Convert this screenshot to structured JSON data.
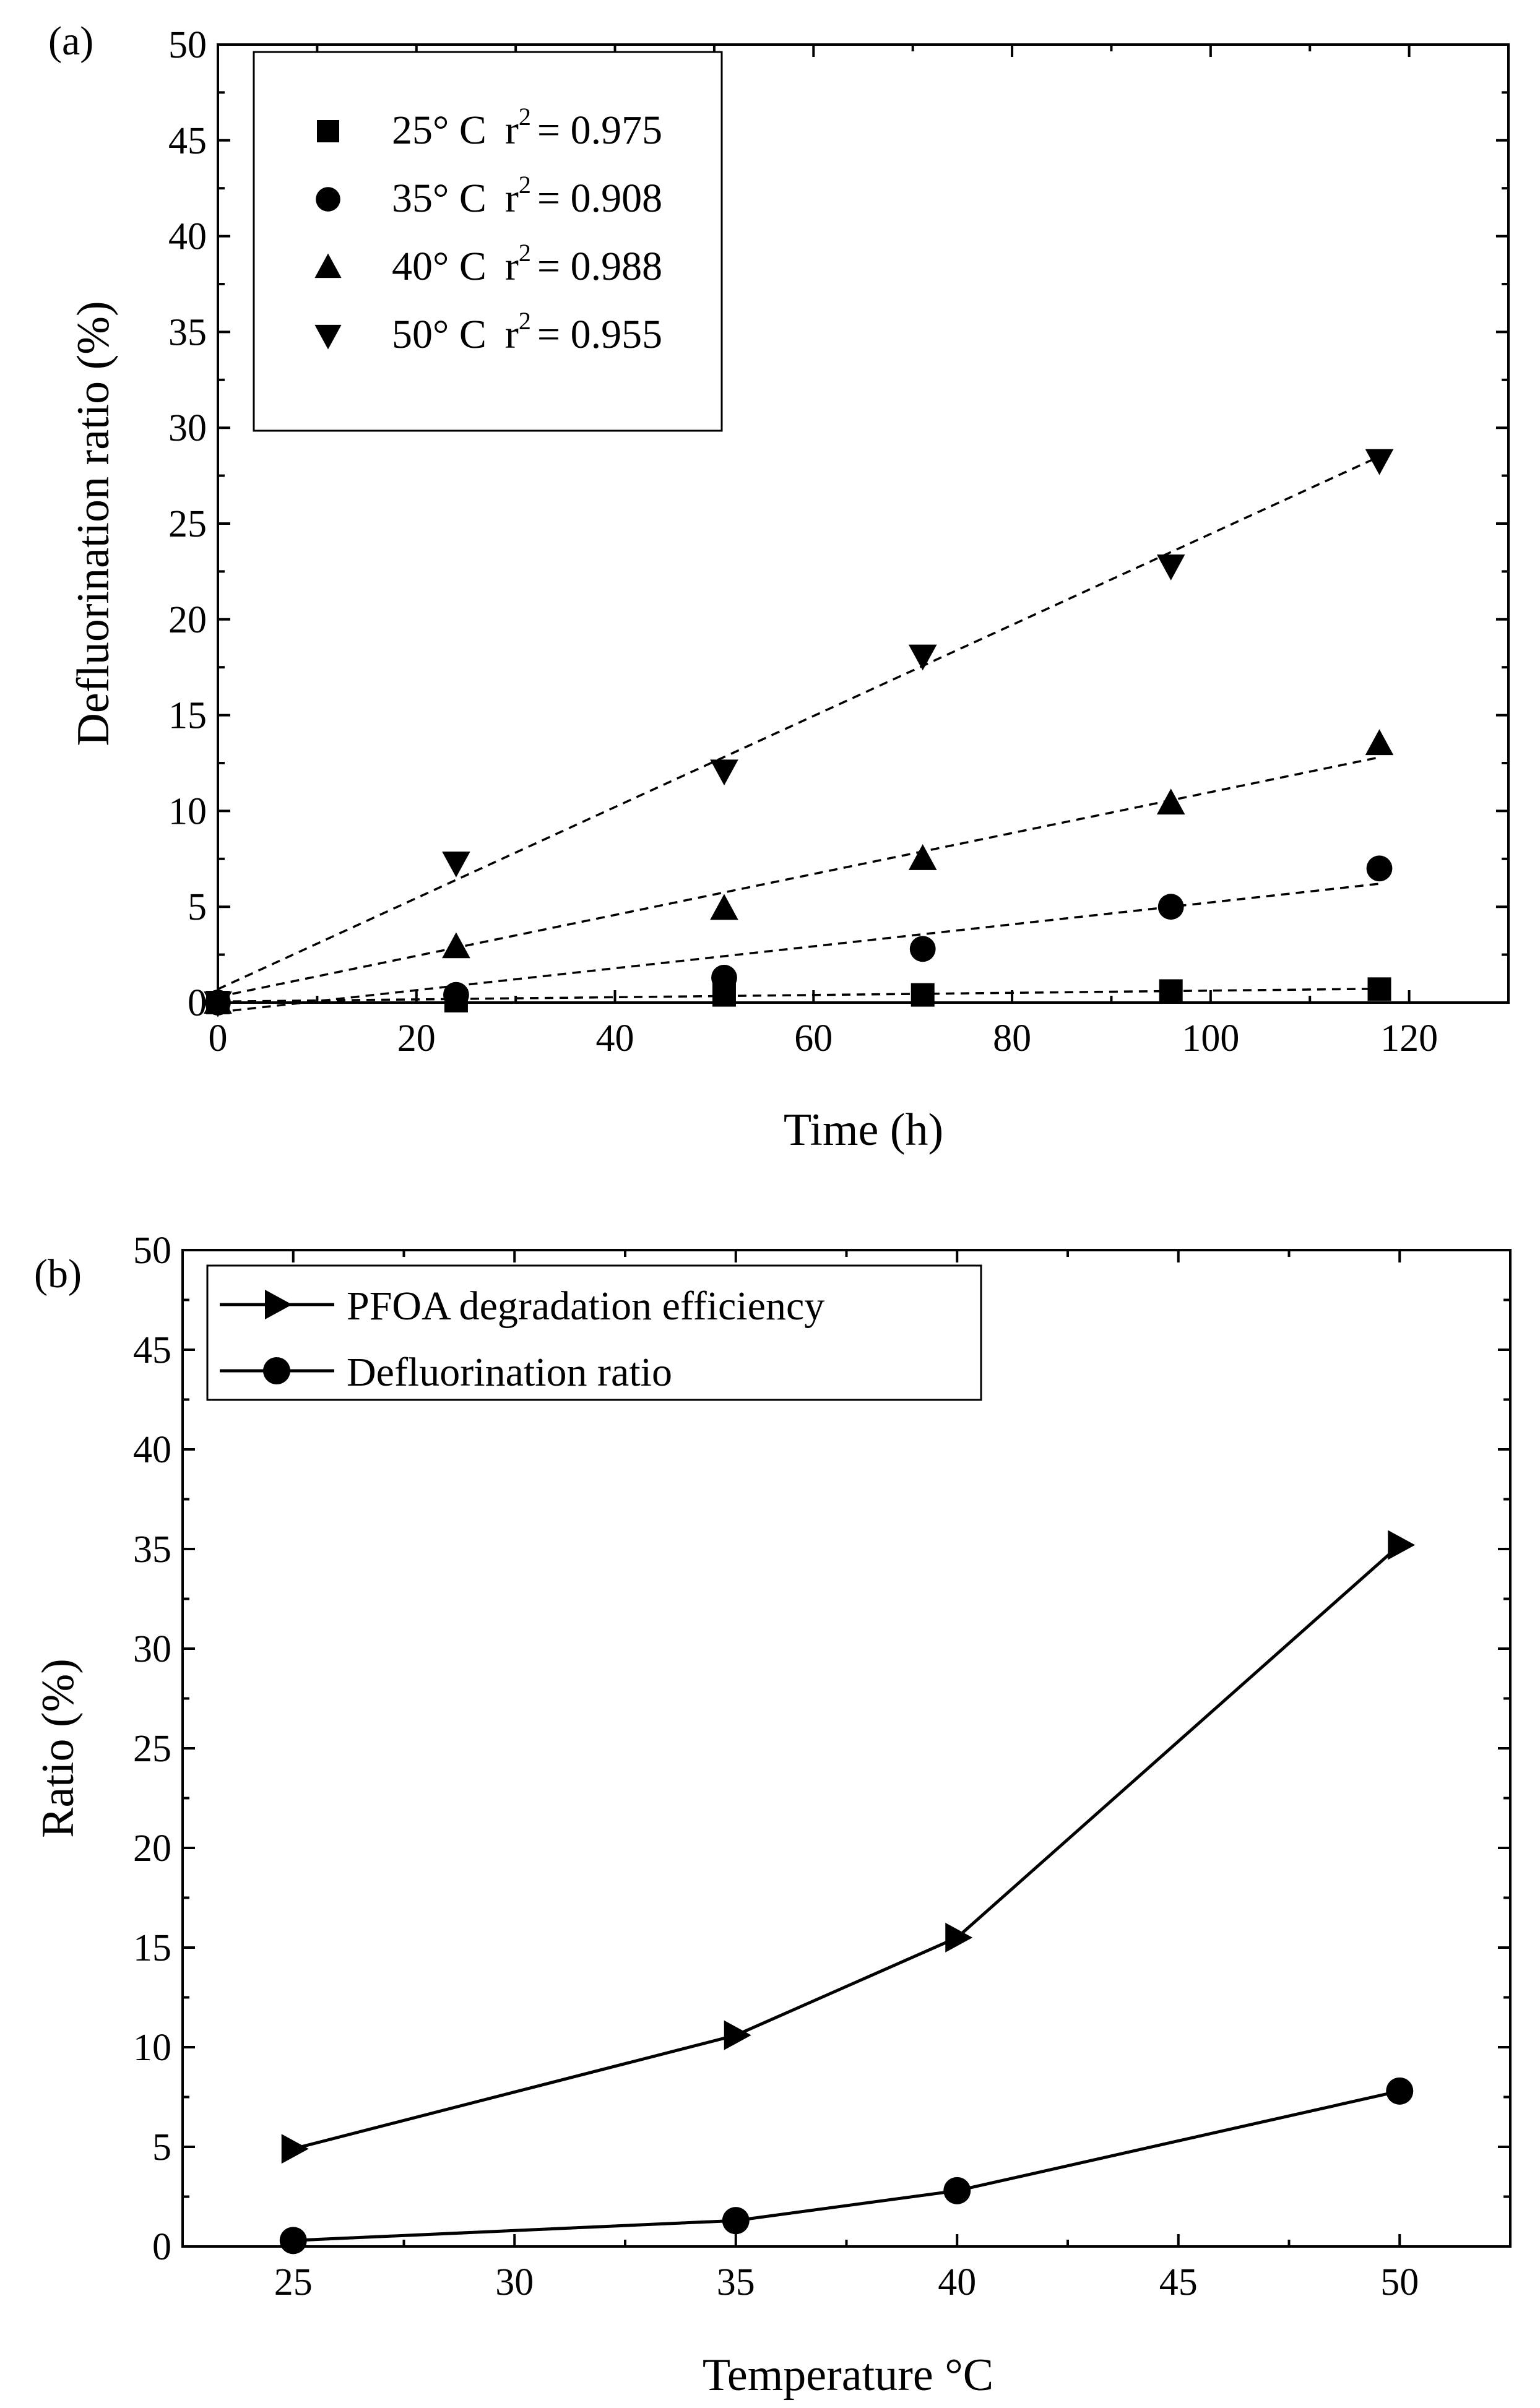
{
  "chart_data": [
    {
      "type": "scatter",
      "panel_label": "(a)",
      "xlabel": "Time (h)",
      "ylabel": "Defluorination ratio (%)",
      "xlim": [
        0,
        130
      ],
      "ylim": [
        0,
        50
      ],
      "xticks": [
        0,
        20,
        40,
        60,
        80,
        100,
        120
      ],
      "yticks": [
        0,
        5,
        10,
        15,
        20,
        25,
        30,
        35,
        40,
        45,
        50
      ],
      "legend_position": "top-left",
      "series": [
        {
          "name": "25° C",
          "r2_prefix": "r",
          "r2_exp": "2",
          "r2_value": "= 0.975",
          "marker": "square",
          "x": [
            0,
            24,
            51,
            71,
            96,
            117
          ],
          "y": [
            0,
            0.1,
            0.4,
            0.4,
            0.6,
            0.7
          ],
          "fit": [
            [
              0,
              0.05
            ],
            [
              117,
              0.72
            ]
          ]
        },
        {
          "name": "35° C",
          "r2_prefix": "r",
          "r2_exp": "2",
          "r2_value": "= 0.908",
          "marker": "circle",
          "x": [
            0,
            24,
            51,
            71,
            96,
            117
          ],
          "y": [
            0,
            0.4,
            1.3,
            2.8,
            5.0,
            7.0
          ],
          "fit": [
            [
              0,
              -0.5
            ],
            [
              117,
              6.2
            ]
          ]
        },
        {
          "name": "40° C",
          "r2_prefix": "r",
          "r2_exp": "2",
          "r2_value": "= 0.988",
          "marker": "triangle-up",
          "x": [
            0,
            24,
            51,
            71,
            96,
            117
          ],
          "y": [
            0,
            2.9,
            4.9,
            7.5,
            10.4,
            13.5
          ],
          "fit": [
            [
              0,
              0.3
            ],
            [
              117,
              12.8
            ]
          ]
        },
        {
          "name": "50° C",
          "r2_prefix": "r",
          "r2_exp": "2",
          "r2_value": "= 0.955",
          "marker": "triangle-down",
          "x": [
            0,
            24,
            51,
            71,
            96,
            117
          ],
          "y": [
            0,
            7.3,
            12.1,
            18.1,
            22.8,
            28.3
          ],
          "fit": [
            [
              0,
              0.7
            ],
            [
              117,
              28.5
            ]
          ]
        }
      ]
    },
    {
      "type": "line",
      "panel_label": "(b)",
      "xlabel": "Temperature",
      "xlabel_unit": "°C",
      "ylabel": "Ratio (%)",
      "xlim": [
        22.5,
        52.5
      ],
      "ylim": [
        0,
        50
      ],
      "xticks": [
        25,
        30,
        35,
        40,
        45,
        50
      ],
      "yticks": [
        0,
        5,
        10,
        15,
        20,
        25,
        30,
        35,
        40,
        45,
        50
      ],
      "legend_position": "top-left",
      "series": [
        {
          "name": "PFOA degradation efficiency",
          "marker": "triangle-right",
          "x": [
            25,
            35,
            40,
            50
          ],
          "y": [
            4.9,
            10.6,
            15.5,
            35.2
          ]
        },
        {
          "name": "Defluorination ratio",
          "marker": "circle",
          "x": [
            25,
            35,
            40,
            50
          ],
          "y": [
            0.3,
            1.3,
            2.8,
            7.8
          ]
        }
      ]
    }
  ]
}
